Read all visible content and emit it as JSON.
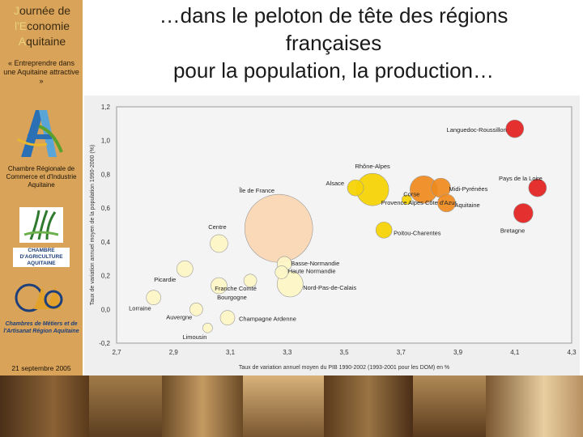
{
  "sidebar": {
    "title_lines": [
      {
        "cap": "J",
        "rest": "ournée de"
      },
      {
        "cap": "l'E",
        "rest": "conomie"
      },
      {
        "cap": "A",
        "rest": "quitaine"
      }
    ],
    "tagline": "« Entreprendre dans une Aquitaine attractive »",
    "cci_text": "Chambre Régionale de Commerce et d'Industrie Aquitaine",
    "agri_text": "CHAMBRE D'AGRICULTURE AQUITAINE",
    "metiers_text": "Chambres de Métiers et de l'Artisanat Région Aquitaine",
    "date": "21 septembre 2005"
  },
  "heading": {
    "line1": "…dans le peloton de tête des régions",
    "line2": "françaises",
    "line3": "pour la population, la production…"
  },
  "chart_data": {
    "type": "scatter",
    "xlabel": "Taux de variation annuel moyen du PIB 1990-2002 (1993-2001 pour les DOM) en %",
    "ylabel": "Taux de variation annuel moyen de la population 1990-2000 (%)",
    "xlim": [
      2.7,
      4.3
    ],
    "ylim": [
      -0.2,
      1.2
    ],
    "xticks": [
      "2,7",
      "2,9",
      "3,1",
      "3,3",
      "3,5",
      "3,7",
      "3,9",
      "4,1",
      "4,3"
    ],
    "yticks": [
      "-0,2",
      "0,0",
      "0,2",
      "0,4",
      "0,6",
      "0,8",
      "1,0",
      "1,2"
    ],
    "grid": false,
    "colors": {
      "red": "#e31e1e",
      "orange": "#ef8a1d",
      "yellow": "#f5d200",
      "pale": "#fdf5c4",
      "peach": "#fad6b2"
    },
    "points": [
      {
        "label": "Languedoc-Roussillon",
        "x": 4.1,
        "y": 1.07,
        "size": 11,
        "color": "red"
      },
      {
        "label": "Pays de la Loire",
        "x": 4.18,
        "y": 0.72,
        "size": 11,
        "color": "red"
      },
      {
        "label": "Bretagne",
        "x": 4.13,
        "y": 0.57,
        "size": 12,
        "color": "red"
      },
      {
        "label": "Rhône-Alpes",
        "x": 3.6,
        "y": 0.71,
        "size": 20,
        "color": "yellow"
      },
      {
        "label": "Alsace",
        "x": 3.54,
        "y": 0.72,
        "size": 10,
        "color": "yellow"
      },
      {
        "label": "Midi-Pyrénées",
        "x": 3.84,
        "y": 0.72,
        "size": 12,
        "color": "orange"
      },
      {
        "label": "Provence-Alpes-Côte d'Azur",
        "x": 3.78,
        "y": 0.71,
        "size": 17,
        "color": "orange"
      },
      {
        "label": "Aquitaine",
        "x": 3.86,
        "y": 0.63,
        "size": 11,
        "color": "orange"
      },
      {
        "label": "Corse",
        "x": 3.72,
        "y": 0.65,
        "size": 6,
        "color": "yellow"
      },
      {
        "label": "Poitou-Charentes",
        "x": 3.64,
        "y": 0.47,
        "size": 10,
        "color": "yellow"
      },
      {
        "label": "Île de France",
        "x": 3.27,
        "y": 0.48,
        "size": 42,
        "color": "peach"
      },
      {
        "label": "Centre",
        "x": 3.06,
        "y": 0.39,
        "size": 11,
        "color": "pale"
      },
      {
        "label": "Basse-Normandie",
        "x": 3.29,
        "y": 0.27,
        "size": 9,
        "color": "pale"
      },
      {
        "label": "Haute-Normandie",
        "x": 3.28,
        "y": 0.22,
        "size": 8,
        "color": "pale"
      },
      {
        "label": "Franche-Comté",
        "x": 3.17,
        "y": 0.17,
        "size": 8,
        "color": "pale"
      },
      {
        "label": "Picardie",
        "x": 2.94,
        "y": 0.24,
        "size": 10,
        "color": "pale"
      },
      {
        "label": "Bourgogne",
        "x": 3.06,
        "y": 0.14,
        "size": 10,
        "color": "pale"
      },
      {
        "label": "Nord-Pas-de-Calais",
        "x": 3.31,
        "y": 0.15,
        "size": 16,
        "color": "pale"
      },
      {
        "label": "Lorraine",
        "x": 2.83,
        "y": 0.07,
        "size": 9,
        "color": "pale"
      },
      {
        "label": "Auvergne",
        "x": 2.98,
        "y": 0.0,
        "size": 8,
        "color": "pale"
      },
      {
        "label": "Limousin",
        "x": 3.02,
        "y": -0.11,
        "size": 6,
        "color": "pale"
      },
      {
        "label": "Champagne-Ardenne",
        "x": 3.09,
        "y": -0.05,
        "size": 9,
        "color": "pale"
      }
    ],
    "point_labels": [
      {
        "text": "Languedoc-Roussillon",
        "for": 0,
        "anchor": "end",
        "dx": -10,
        "dy": 4
      },
      {
        "text": "Pays de la Loire",
        "for": 1,
        "anchor": "end",
        "dx": 6,
        "dy": -9
      },
      {
        "text": "Bretagne",
        "for": 2,
        "anchor": "end",
        "dx": 2,
        "dy": 24
      },
      {
        "text": "Rhône-Alpes",
        "for": 3,
        "anchor": "middle",
        "dx": 0,
        "dy": -26
      },
      {
        "text": "Alsace",
        "for": 4,
        "anchor": "end",
        "dx": -14,
        "dy": -3
      },
      {
        "text": "Midi-Pyrénées",
        "for": 5,
        "anchor": "start",
        "dx": 10,
        "dy": 4
      },
      {
        "text": "Corse",
        "for": 8,
        "anchor": "middle",
        "dx": 6,
        "dy": -4
      },
      {
        "text": "Provence Alpes Côte d'Azur",
        "for": 6,
        "anchor": "middle",
        "dx": -6,
        "dy": 19
      },
      {
        "text": "Aquitaine",
        "for": 7,
        "anchor": "start",
        "dx": 10,
        "dy": 5
      },
      {
        "text": "Poitou-Charentes",
        "for": 9,
        "anchor": "start",
        "dx": 12,
        "dy": 6
      },
      {
        "text": "Île de France",
        "for": 10,
        "anchor": "middle",
        "dx": -27,
        "dy": -44
      },
      {
        "text": "Centre",
        "for": 11,
        "anchor": "middle",
        "dx": -2,
        "dy": -18
      },
      {
        "text": "Basse-Normandie",
        "for": 12,
        "anchor": "start",
        "dx": 8,
        "dy": 2
      },
      {
        "text": "Haute Normandie",
        "for": 13,
        "anchor": "start",
        "dx": 8,
        "dy": 1
      },
      {
        "text": "Franche Comté",
        "for": 14,
        "anchor": "middle",
        "dx": -18,
        "dy": 12
      },
      {
        "text": "Picardie",
        "for": 15,
        "anchor": "end",
        "dx": -11,
        "dy": 16
      },
      {
        "text": "Bourgogne",
        "for": 16,
        "anchor": "middle",
        "dx": 16,
        "dy": 17
      },
      {
        "text": "Nord-Pas-de-Calais",
        "for": 17,
        "anchor": "start",
        "dx": 16,
        "dy": 7
      },
      {
        "text": "Lorraine",
        "for": 18,
        "anchor": "end",
        "dx": -3,
        "dy": 16
      },
      {
        "text": "Auvergne",
        "for": 19,
        "anchor": "end",
        "dx": -5,
        "dy": 12
      },
      {
        "text": "Limousin",
        "for": 20,
        "anchor": "end",
        "dx": -1,
        "dy": 14
      },
      {
        "text": "Champagne Ardenne",
        "for": 21,
        "anchor": "start",
        "dx": 14,
        "dy": 4
      }
    ]
  }
}
